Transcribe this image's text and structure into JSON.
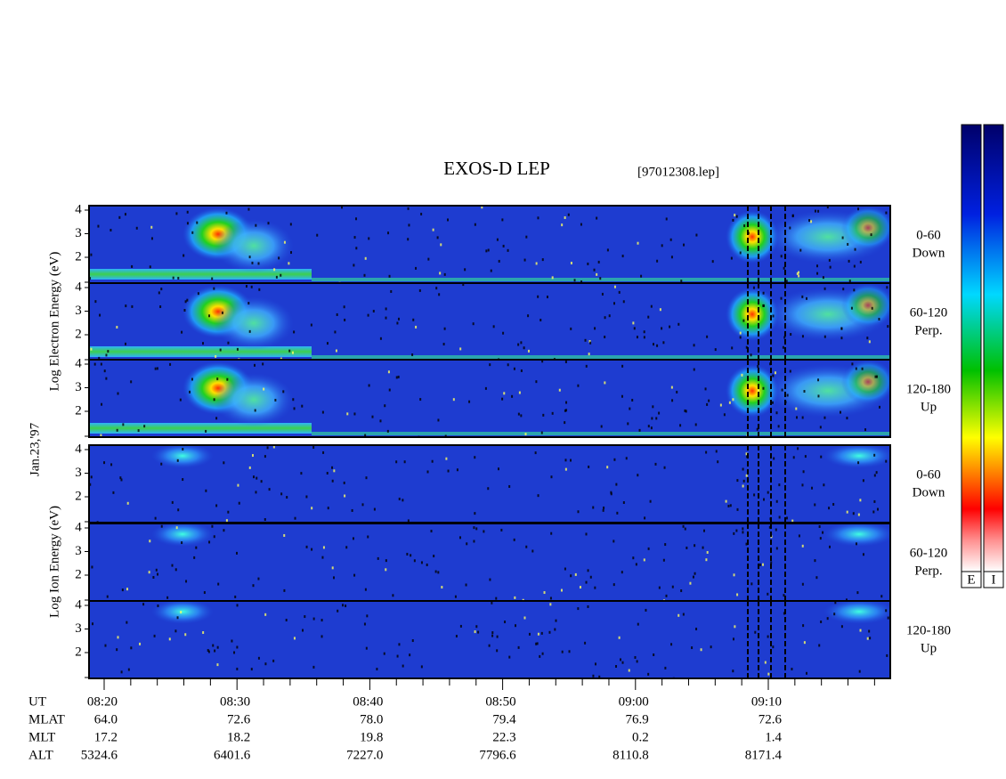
{
  "header": {
    "title": "EXOS-D LEP",
    "file": "[97012308.lep]"
  },
  "electron": {
    "axis_label": "Log Electron Energy (eV)",
    "panels": [
      {
        "label": "0-60",
        "direction": "Down",
        "ticks": [
          "4",
          "3",
          "2"
        ]
      },
      {
        "label": "60-120",
        "direction": "Perp.",
        "ticks": [
          "4",
          "3",
          "2"
        ]
      },
      {
        "label": "120-180",
        "direction": "Up",
        "ticks": [
          "4",
          "3",
          "2"
        ]
      }
    ]
  },
  "date": "Jan.23,'97",
  "ion": {
    "axis_label": "Log Ion Energy (eV)",
    "panels": [
      {
        "label": "0-60",
        "direction": "Down",
        "ticks": [
          "4",
          "3",
          "2"
        ]
      },
      {
        "label": "60-120",
        "direction": "Perp.",
        "ticks": [
          "4",
          "3",
          "2"
        ]
      },
      {
        "label": "120-180",
        "direction": "Up",
        "ticks": [
          "4",
          "3",
          "2"
        ]
      }
    ]
  },
  "ephemeris": {
    "rows": [
      [
        "UT",
        "08:20",
        "08:30",
        "08:40",
        "08:50",
        "09:00",
        "09:10"
      ],
      [
        "MLAT",
        "64.0",
        "72.6",
        "78.0",
        "79.4",
        "76.9",
        "72.6"
      ],
      [
        "MLT",
        "17.2",
        "18.2",
        "19.8",
        "22.3",
        "0.2",
        "1.4"
      ],
      [
        "ALT",
        "5324.6",
        "6401.6",
        "7227.0",
        "7796.6",
        "8110.8",
        "8171.4"
      ]
    ]
  },
  "colorbar": {
    "labels": [
      "E",
      "I"
    ]
  }
}
